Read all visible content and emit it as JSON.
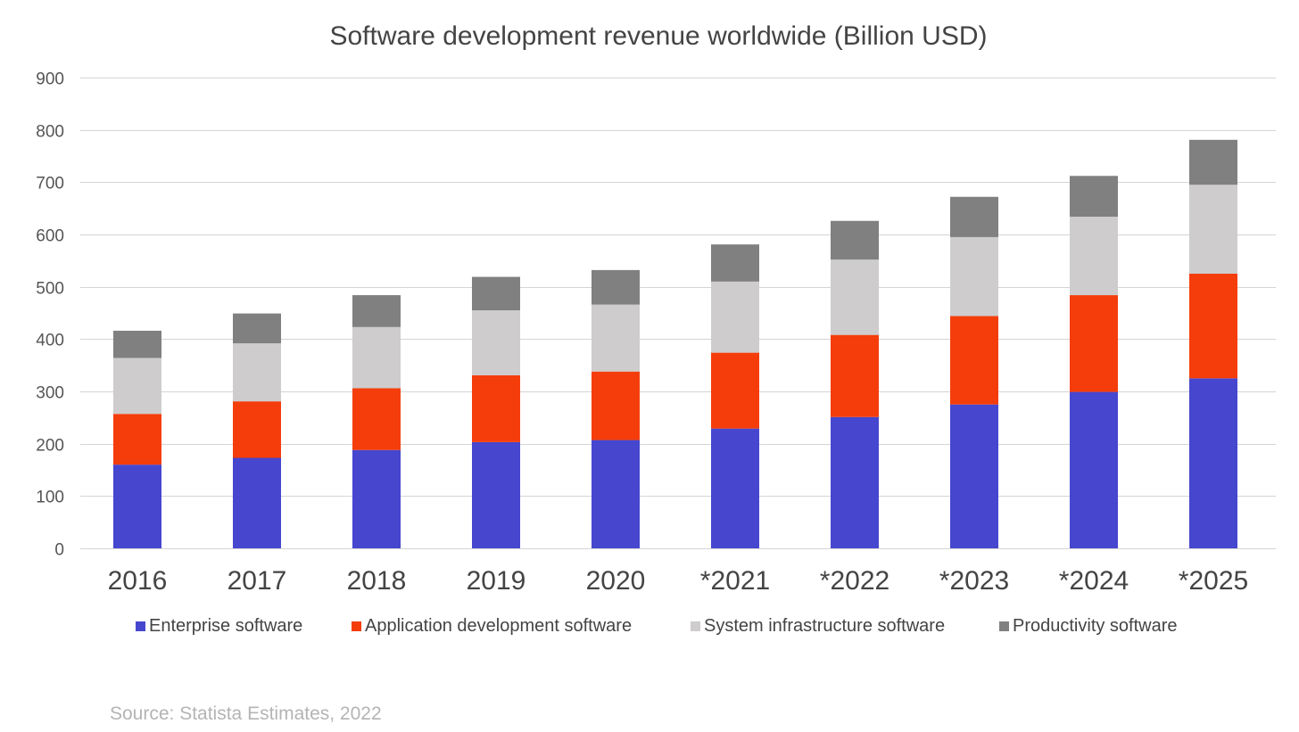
{
  "chart_data": {
    "type": "bar",
    "stacked": true,
    "title": "Software development revenue worldwide (Billion USD)",
    "xlabel": "",
    "ylabel": "",
    "ylim": [
      0,
      900
    ],
    "yticks": [
      0,
      100,
      200,
      300,
      400,
      500,
      600,
      700,
      800,
      900
    ],
    "grid": true,
    "legend_position": "bottom",
    "categories": [
      "2016",
      "2017",
      "2018",
      "2019",
      "2020",
      "*2021",
      "*2022",
      "*2023",
      "*2024",
      "*2025"
    ],
    "series": [
      {
        "name": "Enterprise software",
        "color": "#4646cf",
        "values": [
          160,
          173,
          188,
          203,
          207,
          229,
          251,
          275,
          299,
          325
        ]
      },
      {
        "name": "Application development software",
        "color": "#f53d0b",
        "values": [
          97,
          108,
          118,
          128,
          131,
          145,
          157,
          169,
          185,
          200
        ]
      },
      {
        "name": "System infrastructure software",
        "color": "#cecccd",
        "values": [
          107,
          111,
          117,
          124,
          128,
          136,
          144,
          151,
          150,
          170
        ]
      },
      {
        "name": "Productivity software",
        "color": "#808080",
        "values": [
          52,
          57,
          61,
          64,
          66,
          71,
          74,
          77,
          78,
          86
        ]
      }
    ],
    "source": "Source: Statista Estimates, 2022"
  }
}
